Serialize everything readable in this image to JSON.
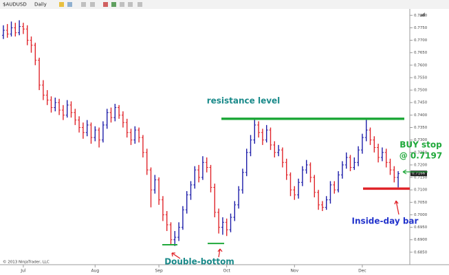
{
  "chart_data": {
    "type": "ohlc",
    "toolbar": {
      "instrument": "$AUDUSD",
      "period": "Daily"
    },
    "copyright": "© 2013 NinjaTrader, LLC",
    "categories": [
      null,
      null,
      null,
      null,
      null,
      "Jul",
      null,
      null,
      null,
      null,
      null,
      null,
      null,
      null,
      null,
      null,
      null,
      null,
      null,
      null,
      null,
      null,
      null,
      "Aug",
      null,
      null,
      null,
      null,
      null,
      null,
      null,
      null,
      null,
      null,
      null,
      null,
      null,
      null,
      null,
      "Sep",
      null,
      null,
      null,
      null,
      null,
      null,
      null,
      null,
      null,
      null,
      null,
      null,
      null,
      null,
      null,
      null,
      "Oct",
      null,
      null,
      null,
      null,
      null,
      null,
      null,
      null,
      null,
      null,
      null,
      null,
      null,
      null,
      null,
      null,
      "Nov",
      null,
      null,
      null,
      null,
      null,
      null,
      null,
      null,
      null,
      null,
      null,
      null,
      null,
      null,
      null,
      null,
      "Dec",
      null,
      null,
      null,
      null,
      null,
      null,
      null,
      null,
      null
    ],
    "series": [
      {
        "open": [
          0.772,
          0.774,
          0.7725,
          0.775,
          0.773,
          0.7755,
          0.7745,
          0.77,
          0.768,
          0.762,
          0.752,
          0.748,
          0.746,
          0.743,
          0.745,
          0.742,
          0.74,
          0.744,
          0.741,
          0.738,
          0.735,
          0.733,
          0.736,
          0.731,
          0.734,
          0.73,
          0.736,
          0.741,
          0.739,
          0.743,
          0.74,
          0.737,
          0.733,
          0.73,
          0.734,
          0.731,
          0.725,
          0.718,
          0.71,
          0.714,
          0.706,
          0.7,
          0.696,
          0.69,
          0.691,
          0.695,
          0.702,
          0.708,
          0.712,
          0.718,
          0.715,
          0.721,
          0.719,
          0.711,
          0.701,
          0.695,
          0.697,
          0.694,
          0.699,
          0.704,
          0.71,
          0.717,
          0.725,
          0.73,
          0.736,
          0.733,
          0.73,
          0.734,
          0.728,
          0.725,
          0.726,
          0.721,
          0.716,
          0.71,
          0.708,
          0.713,
          0.718,
          0.72,
          0.715,
          0.709,
          0.704,
          0.703,
          0.706,
          0.712,
          0.71,
          0.716,
          0.72,
          0.723,
          0.719,
          0.721,
          0.726,
          0.731,
          0.734,
          0.73,
          0.727,
          0.723,
          0.725,
          0.721,
          0.718,
          0.715
        ],
        "high": [
          0.776,
          0.7765,
          0.7775,
          0.777,
          0.778,
          0.777,
          0.776,
          0.7715,
          0.769,
          0.763,
          0.754,
          0.75,
          0.7475,
          0.747,
          0.7465,
          0.744,
          0.746,
          0.7455,
          0.7425,
          0.7395,
          0.737,
          0.738,
          0.737,
          0.7355,
          0.735,
          0.7375,
          0.7425,
          0.743,
          0.7445,
          0.744,
          0.7415,
          0.7385,
          0.7345,
          0.7355,
          0.735,
          0.732,
          0.7265,
          0.719,
          0.716,
          0.715,
          0.7075,
          0.7015,
          0.697,
          0.6935,
          0.697,
          0.7035,
          0.7095,
          0.7135,
          0.7195,
          0.72,
          0.7235,
          0.723,
          0.72,
          0.7125,
          0.7025,
          0.699,
          0.6985,
          0.7005,
          0.7055,
          0.7115,
          0.7185,
          0.7265,
          0.732,
          0.7385,
          0.7375,
          0.7345,
          0.736,
          0.735,
          0.7295,
          0.728,
          0.727,
          0.7225,
          0.717,
          0.7115,
          0.7145,
          0.7195,
          0.722,
          0.721,
          0.716,
          0.71,
          0.7055,
          0.7075,
          0.7135,
          0.7135,
          0.7175,
          0.7215,
          0.725,
          0.724,
          0.723,
          0.7275,
          0.7325,
          0.7385,
          0.735,
          0.7315,
          0.7285,
          0.727,
          0.7265,
          0.7225,
          0.7195,
          0.7175
        ],
        "low": [
          0.7705,
          0.771,
          0.7715,
          0.7715,
          0.772,
          0.7725,
          0.768,
          0.765,
          0.76,
          0.75,
          0.746,
          0.744,
          0.741,
          0.7415,
          0.74,
          0.738,
          0.739,
          0.739,
          0.736,
          0.733,
          0.7305,
          0.7315,
          0.7285,
          0.7295,
          0.727,
          0.729,
          0.7345,
          0.737,
          0.7375,
          0.7385,
          0.735,
          0.731,
          0.728,
          0.7285,
          0.729,
          0.723,
          0.716,
          0.703,
          0.7085,
          0.704,
          0.6975,
          0.6935,
          0.688,
          0.6875,
          0.6895,
          0.694,
          0.7005,
          0.706,
          0.7105,
          0.713,
          0.714,
          0.717,
          0.709,
          0.699,
          0.6925,
          0.692,
          0.6915,
          0.693,
          0.6975,
          0.7025,
          0.7085,
          0.7155,
          0.7235,
          0.7285,
          0.731,
          0.728,
          0.729,
          0.726,
          0.723,
          0.7235,
          0.719,
          0.714,
          0.7075,
          0.706,
          0.7065,
          0.7115,
          0.7165,
          0.713,
          0.707,
          0.702,
          0.7015,
          0.702,
          0.7045,
          0.7085,
          0.709,
          0.7145,
          0.7185,
          0.7175,
          0.718,
          0.7195,
          0.7245,
          0.7295,
          0.728,
          0.725,
          0.721,
          0.7215,
          0.719,
          0.716,
          0.713,
          0.711
        ],
        "close": [
          0.774,
          0.7725,
          0.775,
          0.773,
          0.7755,
          0.7745,
          0.77,
          0.768,
          0.762,
          0.752,
          0.748,
          0.746,
          0.743,
          0.745,
          0.742,
          0.74,
          0.744,
          0.741,
          0.738,
          0.735,
          0.733,
          0.736,
          0.731,
          0.734,
          0.73,
          0.736,
          0.741,
          0.739,
          0.743,
          0.74,
          0.737,
          0.733,
          0.73,
          0.734,
          0.731,
          0.725,
          0.718,
          0.71,
          0.714,
          0.706,
          0.7,
          0.696,
          0.69,
          0.691,
          0.695,
          0.702,
          0.708,
          0.712,
          0.718,
          0.715,
          0.721,
          0.719,
          0.711,
          0.701,
          0.695,
          0.697,
          0.694,
          0.699,
          0.704,
          0.71,
          0.717,
          0.725,
          0.73,
          0.736,
          0.733,
          0.73,
          0.734,
          0.728,
          0.725,
          0.726,
          0.721,
          0.716,
          0.71,
          0.708,
          0.713,
          0.718,
          0.72,
          0.715,
          0.709,
          0.704,
          0.703,
          0.706,
          0.712,
          0.71,
          0.716,
          0.72,
          0.723,
          0.719,
          0.721,
          0.726,
          0.731,
          0.734,
          0.73,
          0.727,
          0.723,
          0.725,
          0.721,
          0.718,
          0.715,
          0.7165
        ]
      }
    ],
    "up_color": "#1c1ca8",
    "down_color": "#e0242a",
    "ylim": [
      0.68,
      0.782
    ],
    "yticks": [
      {
        "value": 0.685,
        "label": "0.6850"
      },
      {
        "value": 0.69,
        "label": "0.6900"
      },
      {
        "value": 0.695,
        "label": "0.6950"
      },
      {
        "value": 0.7,
        "label": "0.7000"
      },
      {
        "value": 0.705,
        "label": "0.7050"
      },
      {
        "value": 0.71,
        "label": "0.7100"
      },
      {
        "value": 0.715,
        "label": "0.7150"
      },
      {
        "value": 0.72,
        "label": "0.7200"
      },
      {
        "value": 0.725,
        "label": "0.7250"
      },
      {
        "value": 0.73,
        "label": "0.7300"
      },
      {
        "value": 0.735,
        "label": "0.7350"
      },
      {
        "value": 0.74,
        "label": "0.7400"
      },
      {
        "value": 0.745,
        "label": "0.7450"
      },
      {
        "value": 0.75,
        "label": "0.7500"
      },
      {
        "value": 0.755,
        "label": "0.7550"
      },
      {
        "value": 0.76,
        "label": "0.7600"
      },
      {
        "value": 0.765,
        "label": "0.7650"
      },
      {
        "value": 0.77,
        "label": "0.7700"
      },
      {
        "value": 0.775,
        "label": "0.7750"
      },
      {
        "value": 0.78,
        "label": "0.7800"
      }
    ],
    "last_price": 0.7166,
    "levels": [
      {
        "value": 0.7385,
        "color": "#1fa83a"
      },
      {
        "value": 0.7105,
        "color": "#e0242a"
      },
      {
        "value": 0.688,
        "color": "#1fa83a"
      },
      {
        "value": 0.6885,
        "color": "#1fa83a"
      }
    ],
    "annotations": {
      "resistance": "resistance level",
      "double_bottom": "Double-bottom",
      "inside_day": "Inside-day bar",
      "buy_stop": "BUY stop",
      "buy_price": "@ 0.7197"
    }
  }
}
